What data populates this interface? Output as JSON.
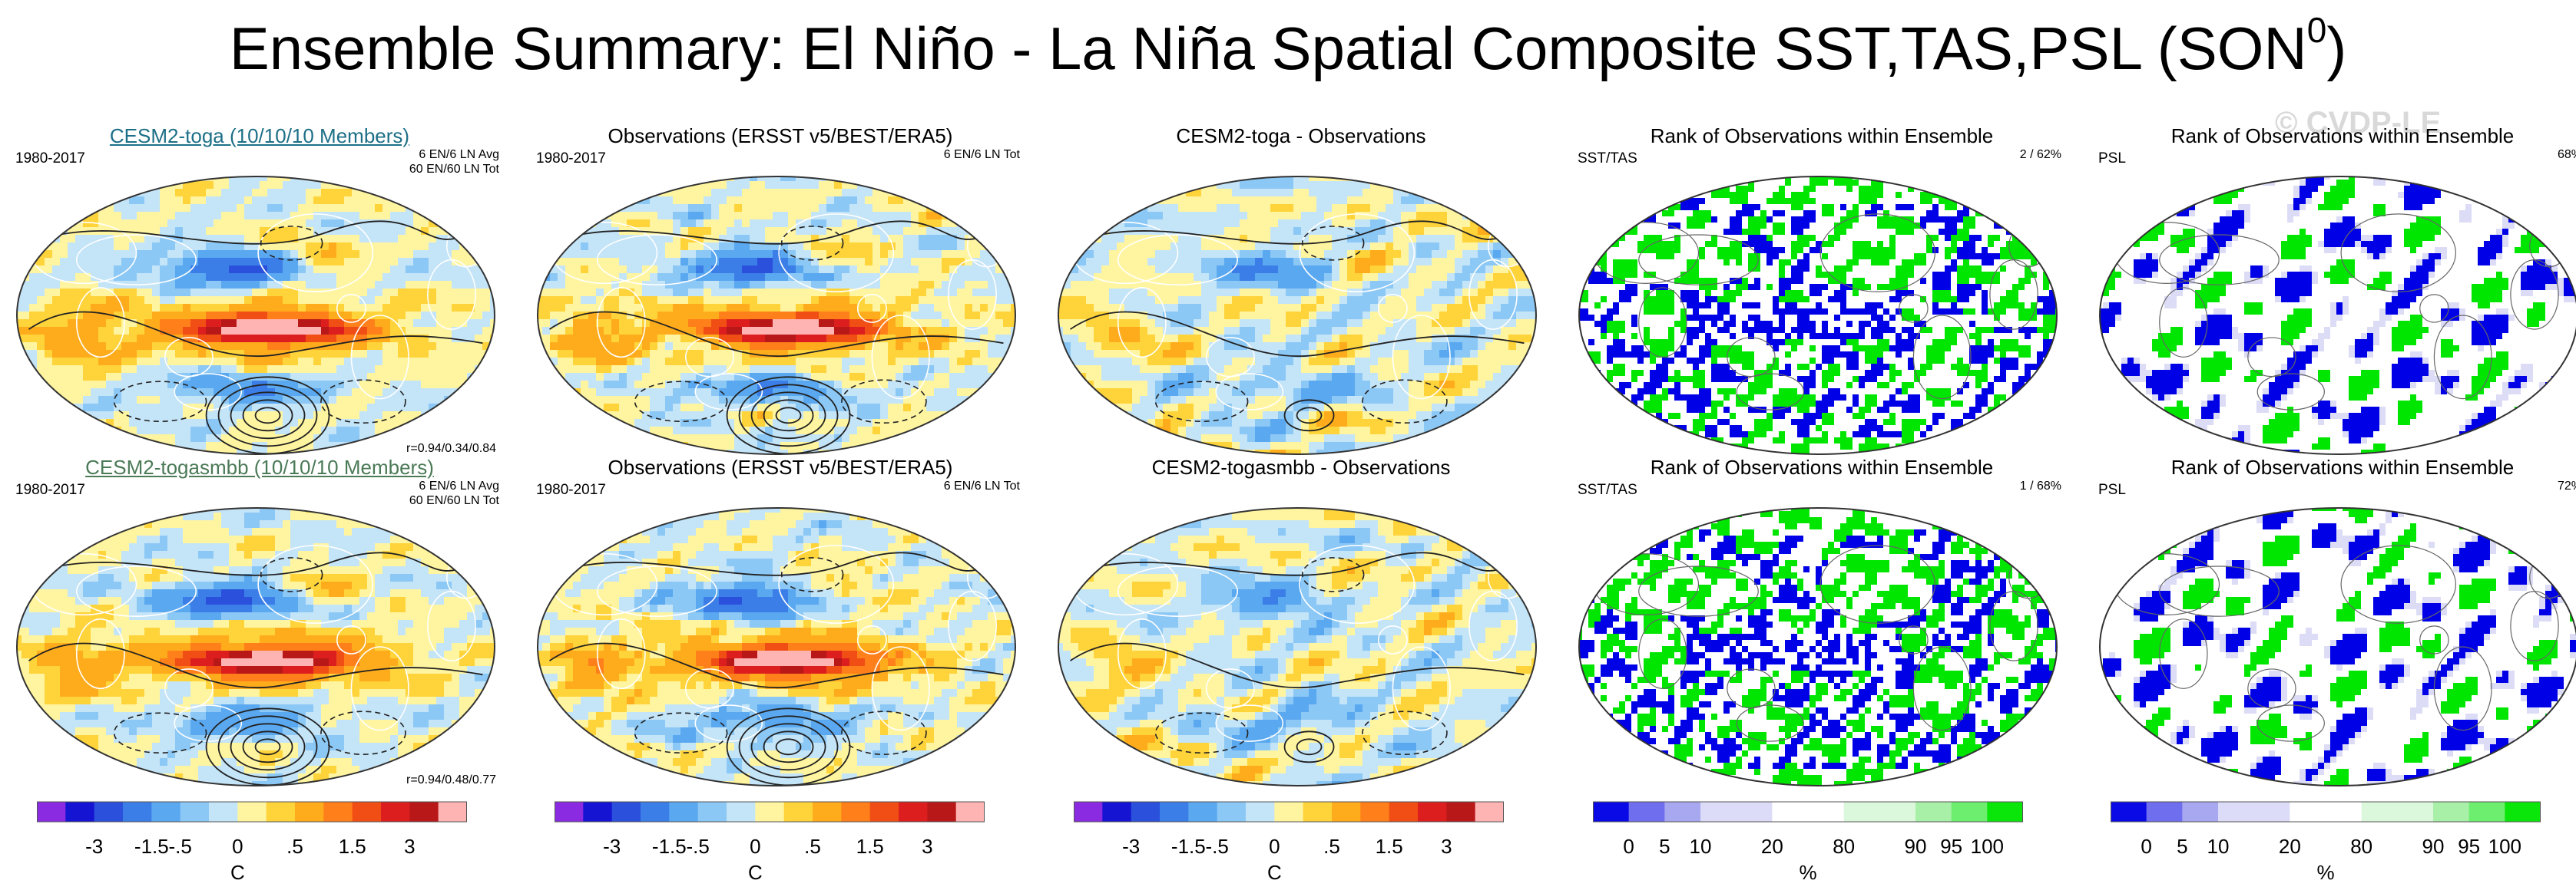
{
  "title": "Ensemble Summary: El Niño - La Niña Spatial Composite SST,TAS,PSL (SON",
  "title_sup": "0",
  "title_end": ")",
  "watermark": "© CVDP-LE",
  "rows": [
    {
      "panels": [
        {
          "type": "model",
          "title": "CESM2-toga (10/10/10 Members)",
          "years": "1980-2017",
          "note1": "6 EN/6 LN Avg",
          "note2": "60 EN/60 LN Tot",
          "corr": "r=0.94/0.34/0.84"
        },
        {
          "type": "obs",
          "title": "Observations (ERSST v5/BEST/ERA5)",
          "years": "1980-2017",
          "note1": "6 EN/6 LN Tot"
        },
        {
          "type": "diff",
          "title": "CESM2-toga - Observations"
        },
        {
          "type": "rank",
          "title": "Rank of Observations within Ensemble",
          "label": "SST/TAS",
          "stat": "2 /  62%"
        },
        {
          "type": "rankpsl",
          "title": "Rank of Observations within Ensemble",
          "label": "PSL",
          "stat": "68%"
        }
      ]
    },
    {
      "panels": [
        {
          "type": "model",
          "title": "CESM2-togasmbb (10/10/10 Members)",
          "years": "1980-2017",
          "note1": "6 EN/6 LN Avg",
          "note2": "60 EN/60 LN Tot",
          "corr": "r=0.94/0.48/0.77"
        },
        {
          "type": "obs",
          "title": "Observations (ERSST v5/BEST/ERA5)",
          "years": "1980-2017",
          "note1": "6 EN/6 LN Tot"
        },
        {
          "type": "diff",
          "title": "CESM2-togasmbb - Observations"
        },
        {
          "type": "rank",
          "title": "Rank of Observations within Ensemble",
          "label": "SST/TAS",
          "stat": "1 /  68%"
        },
        {
          "type": "rankpsl",
          "title": "Rank of Observations within Ensemble",
          "label": "PSL",
          "stat": "72%"
        }
      ]
    }
  ],
  "colorbars": {
    "temperature": {
      "colors": [
        "#8a2be2",
        "#1414d2",
        "#2a50dc",
        "#3c7ee8",
        "#5aa8f0",
        "#8cc8f5",
        "#c4e4f8",
        "#fff5a0",
        "#ffd33a",
        "#ffac1c",
        "#ff801a",
        "#f04e14",
        "#dc1e1e",
        "#b81818",
        "#ffb4b4"
      ],
      "ticks": [
        "-3",
        "-1.5",
        "-.5",
        "0",
        ".5",
        "1.5",
        "3"
      ],
      "unit": "C"
    },
    "rank": {
      "colors": [
        "#0a0ae6",
        "#6e6eee",
        "#a8a8f0",
        "#dcdcf8",
        "#dcdcf8",
        "#ffffff",
        "#ffffff",
        "#dcf8dc",
        "#dcf8dc",
        "#a8f0a8",
        "#6eee6e",
        "#0ae60a"
      ],
      "ticks": [
        "0",
        "5",
        "10",
        "20",
        "80",
        "90",
        "95",
        "100"
      ],
      "unit": "%"
    }
  },
  "legend_colors": {
    "rank_low": "#0000e6",
    "rank_mid_low": "#dcdcf6",
    "rank_high": "#00e600",
    "rank_mid_high": "#dcf6dc"
  }
}
